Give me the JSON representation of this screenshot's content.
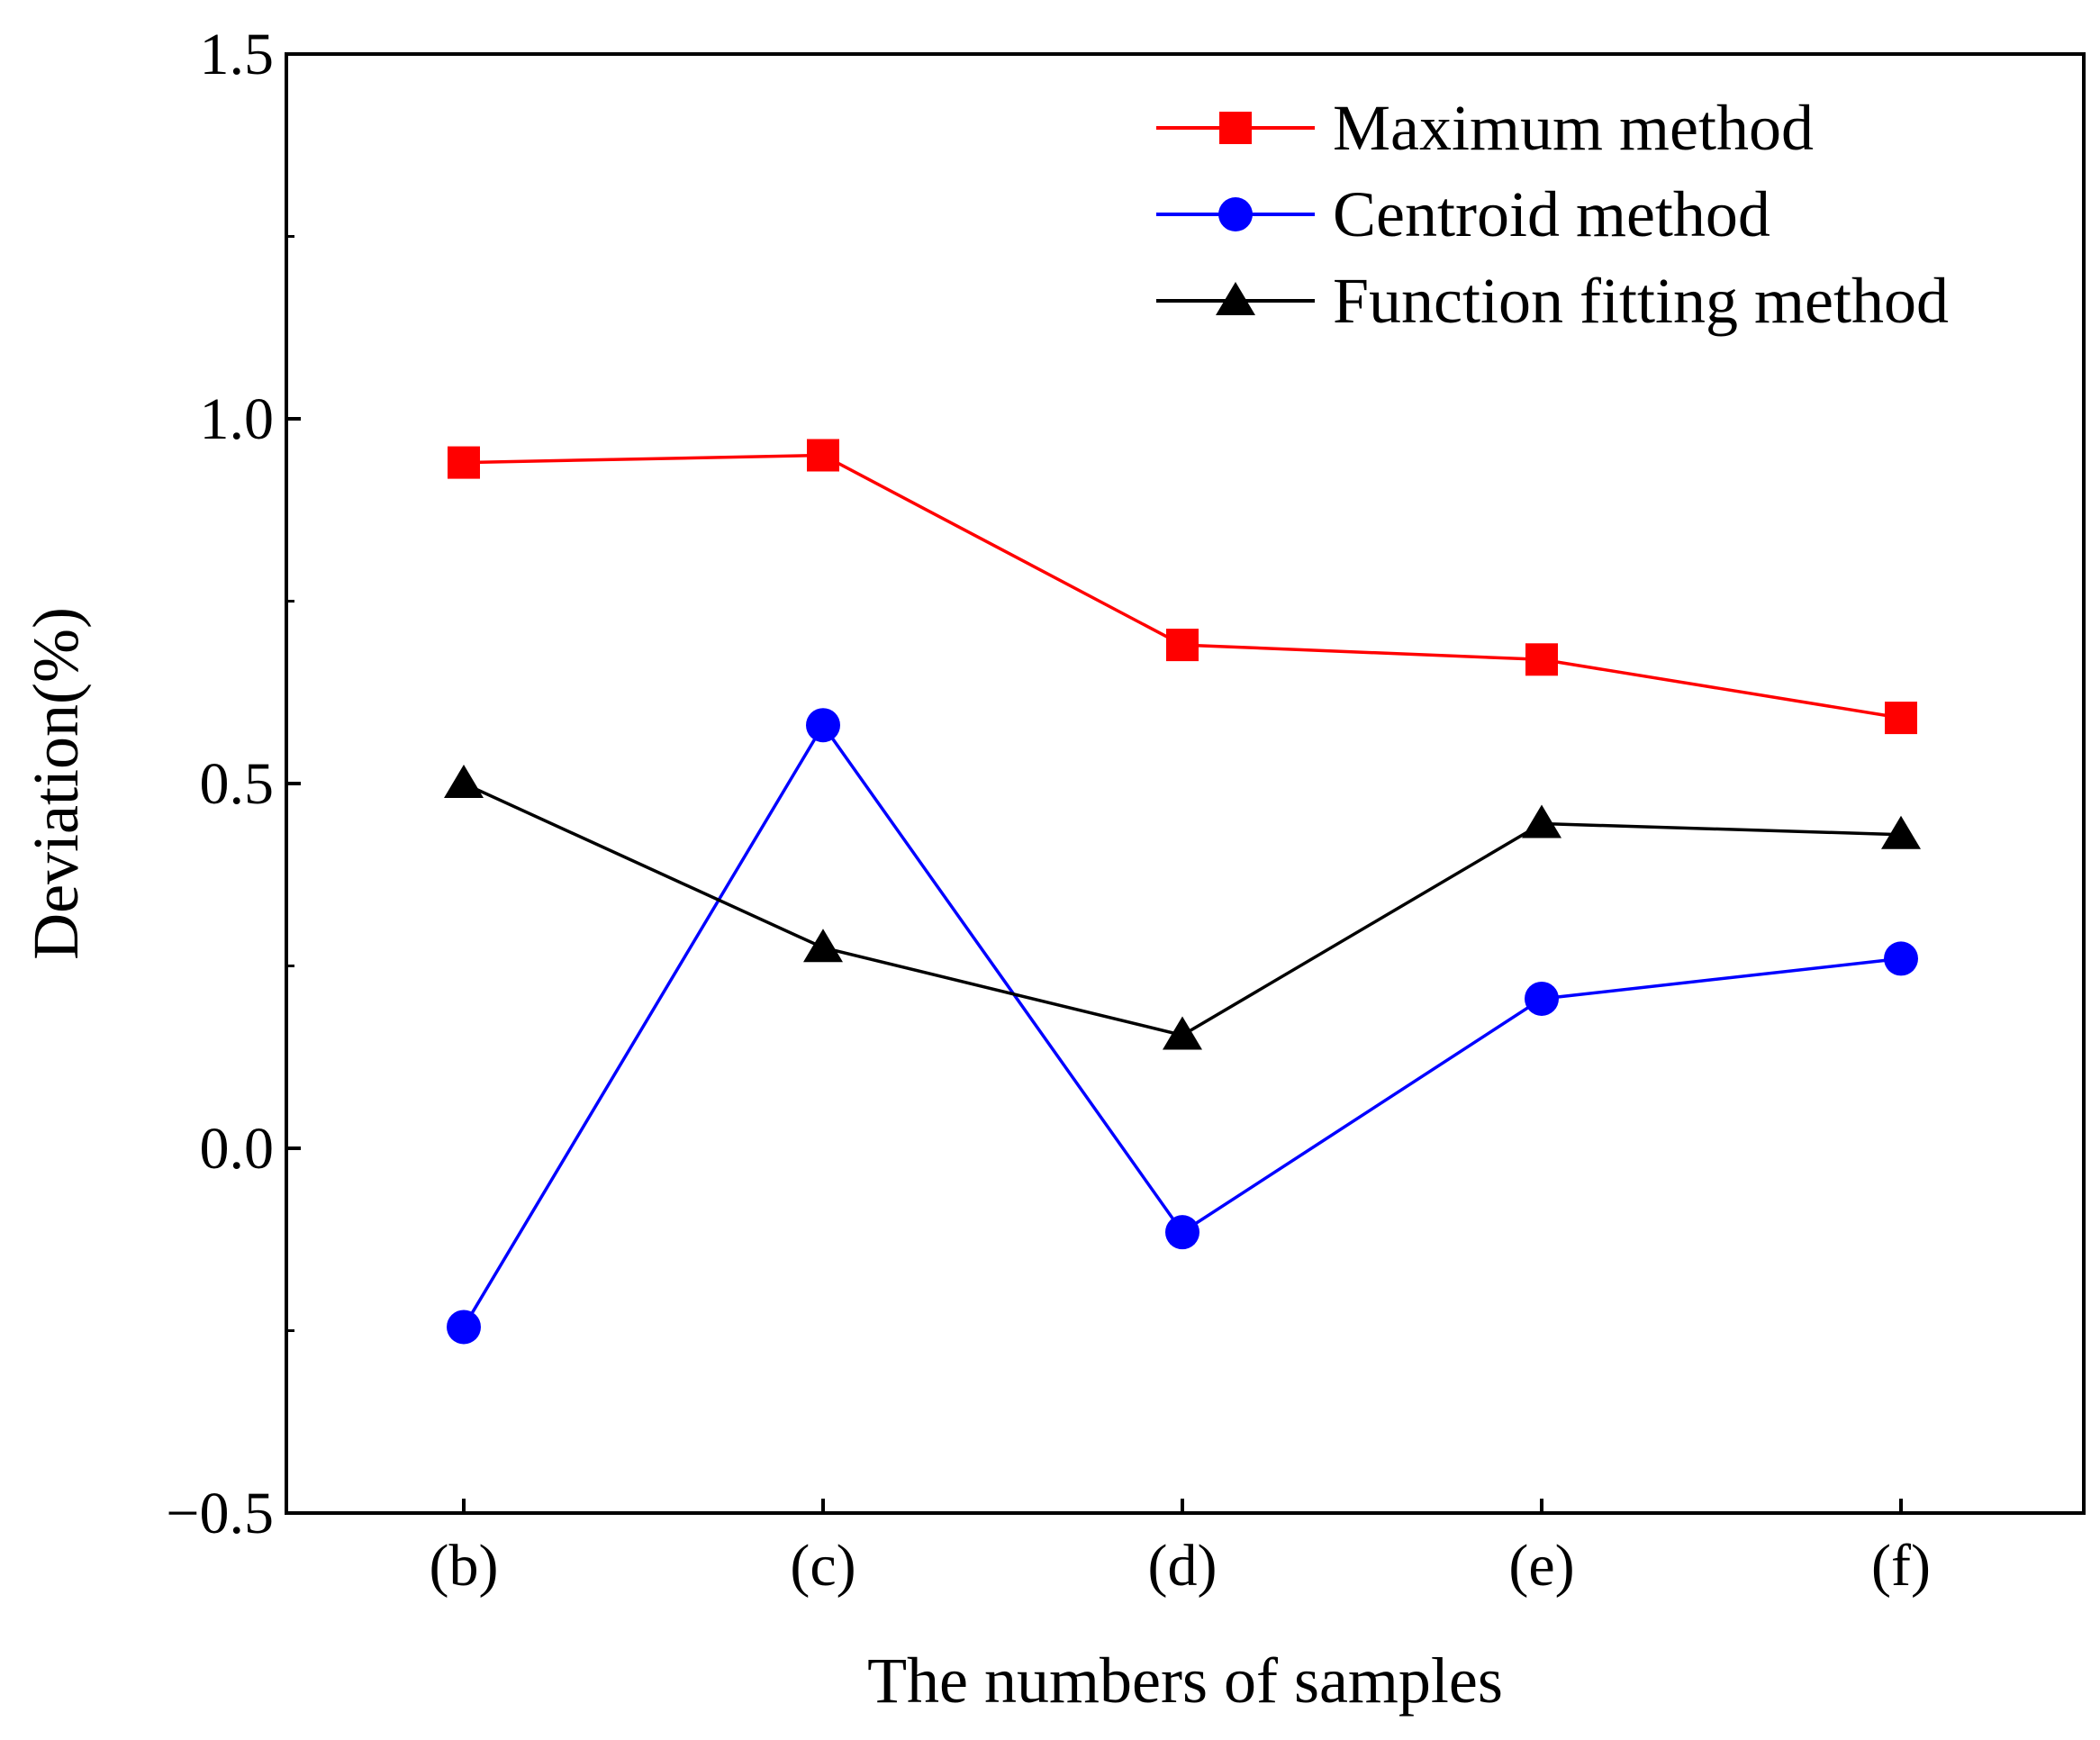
{
  "chart_data": {
    "type": "line",
    "title": "",
    "xlabel": "The numbers of samples",
    "ylabel": "Deviation(%)",
    "categories": [
      "(b)",
      "(c)",
      "(d)",
      "(e)",
      "(f)"
    ],
    "ylim": [
      -0.5,
      1.5
    ],
    "yticks": [
      "−0.5",
      "0.0",
      "0.5",
      "1.0",
      "1.5"
    ],
    "ytick_values": [
      -0.5,
      0.0,
      0.5,
      1.0,
      1.5
    ],
    "grid": false,
    "legend_position": "top-right",
    "series": [
      {
        "name": "Maximum method",
        "color": "#ff0000",
        "marker": "square",
        "values": [
          0.94,
          0.95,
          0.69,
          0.67,
          0.59
        ]
      },
      {
        "name": "Centroid method",
        "color": "#0000ff",
        "marker": "circle",
        "values": [
          -0.245,
          0.58,
          -0.115,
          0.205,
          0.26
        ]
      },
      {
        "name": "Function fitting method",
        "color": "#000000",
        "marker": "triangle",
        "values": [
          0.5,
          0.275,
          0.155,
          0.445,
          0.43
        ]
      }
    ]
  }
}
